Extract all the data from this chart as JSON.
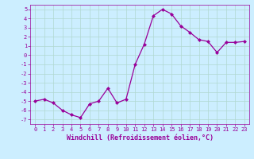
{
  "x": [
    0,
    1,
    2,
    3,
    4,
    5,
    6,
    7,
    8,
    9,
    10,
    11,
    12,
    13,
    14,
    15,
    16,
    17,
    18,
    19,
    20,
    21,
    22,
    23
  ],
  "y": [
    -5,
    -4.8,
    -5.2,
    -6.0,
    -6.5,
    -6.8,
    -5.3,
    -5.0,
    -3.6,
    -5.2,
    -4.8,
    -1.0,
    1.2,
    4.3,
    5.0,
    4.5,
    3.2,
    2.5,
    1.7,
    1.5,
    0.3,
    1.4,
    1.4,
    1.5
  ],
  "line_color": "#990099",
  "marker": "D",
  "markersize": 2,
  "linewidth": 0.9,
  "xlabel": "Windchill (Refroidissement éolien,°C)",
  "xlabel_color": "#990099",
  "bg_color": "#cceeff",
  "grid_color": "#aaddcc",
  "tick_color": "#990099",
  "ylim": [
    -7.5,
    5.5
  ],
  "xlim": [
    -0.5,
    23.5
  ],
  "yticks": [
    -7,
    -6,
    -5,
    -4,
    -3,
    -2,
    -1,
    0,
    1,
    2,
    3,
    4,
    5
  ],
  "xticks": [
    0,
    1,
    2,
    3,
    4,
    5,
    6,
    7,
    8,
    9,
    10,
    11,
    12,
    13,
    14,
    15,
    16,
    17,
    18,
    19,
    20,
    21,
    22,
    23
  ],
  "tick_fontsize": 5,
  "xlabel_fontsize": 6
}
